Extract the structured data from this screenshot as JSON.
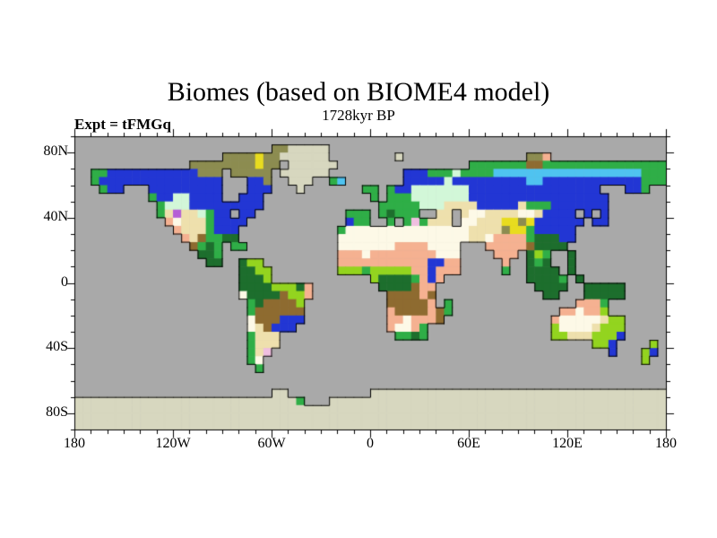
{
  "title": "Biomes (based on BIOME4 model)",
  "subtitle": "1728kyr BP",
  "experiment_label": "Expt = tFMGq",
  "axes": {
    "lat_ticks": [
      {
        "label": "80N",
        "deg": 80
      },
      {
        "label": "40N",
        "deg": 40
      },
      {
        "label": "0",
        "deg": 0
      },
      {
        "label": "40S",
        "deg": -40
      },
      {
        "label": "80S",
        "deg": -80
      }
    ],
    "lon_ticks": [
      {
        "label": "180",
        "deg": -180
      },
      {
        "label": "120W",
        "deg": -120
      },
      {
        "label": "60W",
        "deg": -60
      },
      {
        "label": "0",
        "deg": 0
      },
      {
        "label": "60E",
        "deg": 60
      },
      {
        "label": "120E",
        "deg": 120
      },
      {
        "label": "180",
        "deg": 180
      }
    ],
    "minor_tick_interval_deg": 10,
    "lat_major_interval_deg": 40,
    "lon_major_interval_deg": 60
  },
  "map": {
    "projection": "equirectangular",
    "lon_range": [
      -180,
      180
    ],
    "lat_range": [
      -90,
      90
    ],
    "ocean_color": "#a9a9a9",
    "coastline_color": "#000000",
    "palette": {
      ".": {
        "name": "ocean-gray",
        "color": "#a9a9a9"
      },
      "I": {
        "name": "ice-beige",
        "color": "#d7d7bf"
      },
      "O": {
        "name": "olive-khaki",
        "color": "#8c8c50"
      },
      "B": {
        "name": "dark-blue",
        "color": "#2236d4"
      },
      "C": {
        "name": "light-blue",
        "color": "#4fc3f0"
      },
      "G": {
        "name": "green",
        "color": "#2fae47"
      },
      "D": {
        "name": "dark-green",
        "color": "#1d6e2d"
      },
      "M": {
        "name": "pale-mint",
        "color": "#d2f7d8"
      },
      "K": {
        "name": "yellow-green",
        "color": "#93d41f"
      },
      "Y": {
        "name": "yellow",
        "color": "#e8dc1f"
      },
      "W": {
        "name": "cream-white",
        "color": "#fdf9e7"
      },
      "E": {
        "name": "tan",
        "color": "#eee0ad"
      },
      "P": {
        "name": "salmon-pink",
        "color": "#f5b191"
      },
      "R": {
        "name": "pink",
        "color": "#f0bfe0"
      },
      "N": {
        "name": "brown",
        "color": "#8e6b30"
      },
      "V": {
        "name": "violet",
        "color": "#b55fd6"
      }
    },
    "grid_rle": [
      "72.",
      "24.2O5I41.",
      "18.4O1Y2O6I8.1I15.2O1P14.",
      "14.8O1Y2O1.6I16.7G2N15G",
      "2.2G11B3O1.5O1.6I9.3B3G1M4G18C3G",
      "2.1G15B3.2B1O2.3I2.1G1C7.5B1M9B2C12B3G",
      "3.1G2B3.9B3.3B3.1I7.2G1.1G2B7M16B3.2B1G2.",
      "9.1G2B2M4B2.3B1.12.1G1.3G7M17B7.",
      "10.1G3M9B14.5G3M4E5B1E3G7B7.",
      "10.1G1E1V2E1M1G2B1.2B11.3G1.1G1D3G2.2E1.1E2W4E2W1E4B1.1B1.1B7.",
      "11.1P1W3E1G4B12.1B2G2.1G1.1G1R1G3E1.2W3E2Y1O1Y6B1.2B7.",
      "12.1P3E1G3B12.1G15W4E1O2Y1G5B11.",
      "13.1P1E1N2G2D12.16W2E1W4P1G3D2B11.",
      "14.1N1G1D1G1.2G11.7W4P4W3.5P1N4D12.",
      "15.2D1G14.3P1W8P3W4.3P1.1D1K1G2.1D11.",
      "16.2D2.1D2K9.11P2B2P5.1P2.1D1G1D2.1D11.",
      "20.2D2K8.3K1G5K2P1B3P5.1G2.4D1.1D11.",
      "20.3D1K12.1K4D1G1P1B1P10.4D1G1.1D10.",
      "20.4D3K1D1P8.4D1N2P12.4D2.5D5.",
      "20.1W4D1N2K1P9.4N1P1N13.2D3.5D5.",
      "21.1G1D4N1K10.5N1P1.1G15.3P1G7.",
      "21.1G6N10.1P4N1P1N1G13.2P1W2P1K7.",
      "21.1W3N3B10.2P1W3P1N13.1P5W1E2K5.",
      "21.1W1E1N3B11.1P2W1P1G15.1K4W1E3K5.",
      "21.1G3E14.2G1D1G15.2K3E3K1B5.",
      "21.1G3E38.2K1B4.1K1.",
      "21.1G1E1R41.1B3.1K1B1.",
      "21.1G1W46.1K2.",
      "22.1G49.",
      "72.",
      "72.",
      "24.2I10.36I",
      "27I1G3.41I",
      "72I",
      "72I",
      "72I"
    ]
  }
}
